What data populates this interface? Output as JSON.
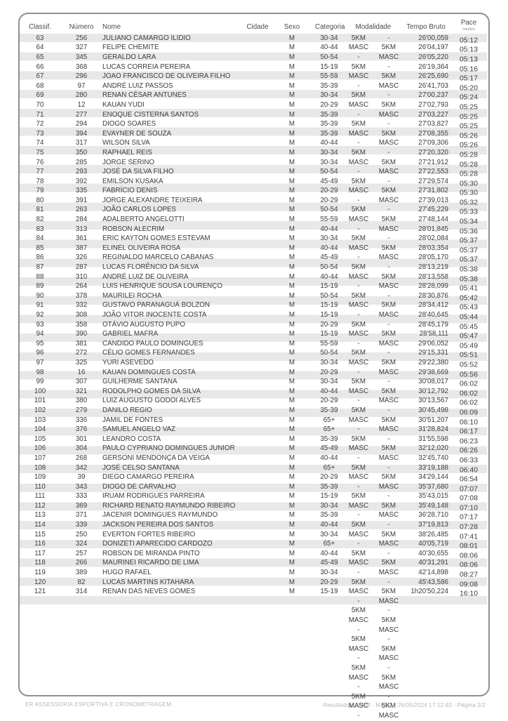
{
  "table": {
    "headers": [
      "Classif.",
      "Número",
      "Nome",
      "Cidade",
      "Sexo",
      "Categoria",
      "Modalidade",
      "Tempo Bruto",
      "Pace"
    ],
    "pace_subheader": "min/km",
    "rows": [
      [
        "63",
        "256",
        "JULIANO CAMARGO ILIDIO",
        "",
        "M",
        "30-34",
        "5KM",
        "-",
        "26'00,059",
        "05:12"
      ],
      [
        "64",
        "327",
        "FELIPE CHEMITE",
        "",
        "M",
        "40-44",
        "MASC",
        "5KM",
        "26'04,197",
        "05:13"
      ],
      [
        "65",
        "345",
        "GERALDO LARA",
        "",
        "M",
        "50-54",
        "-",
        "MASC",
        "26'05,220",
        "05:13"
      ],
      [
        "66",
        "368",
        "LUCAS CORREIA PEREIRA",
        "",
        "M",
        "15-19",
        "5KM",
        "-",
        "26'19,364",
        "05:16"
      ],
      [
        "67",
        "296",
        "JOAO FRANCISCO DE OLIVEIRA FILHO",
        "",
        "M",
        "55-59",
        "MASC",
        "5KM",
        "26'25,690",
        "05:17"
      ],
      [
        "68",
        "97",
        "ANDRÉ LUIZ PASSOS",
        "",
        "M",
        "35-39",
        "-",
        "MASC",
        "26'41,703",
        "05:20"
      ],
      [
        "69",
        "280",
        "RENAN CÉSAR ANTUNES",
        "",
        "M",
        "30-34",
        "5KM",
        "-",
        "27'00,237",
        "05:24"
      ],
      [
        "70",
        "12",
        "KAUAN YUDI",
        "",
        "M",
        "20-29",
        "MASC",
        "5KM",
        "27'02,793",
        "05:25"
      ],
      [
        "71",
        "277",
        "ENOQUE CISTERNA SANTOS",
        "",
        "M",
        "35-39",
        "-",
        "MASC",
        "27'03,227",
        "05:25"
      ],
      [
        "72",
        "294",
        "DIOGO SOARES",
        "",
        "M",
        "35-39",
        "5KM",
        "-",
        "27'03,827",
        "05:25"
      ],
      [
        "73",
        "394",
        "EVAYNER DE SOUZA",
        "",
        "M",
        "35-39",
        "MASC",
        "5KM",
        "27'08,355",
        "05:26"
      ],
      [
        "74",
        "317",
        "WILSON SILVA",
        "",
        "M",
        "40-44",
        "-",
        "MASC",
        "27'09,306",
        "05:26"
      ],
      [
        "75",
        "350",
        "RAPHAEL REIS",
        "",
        "M",
        "30-34",
        "5KM",
        "-",
        "27'20,320",
        "05:28"
      ],
      [
        "76",
        "285",
        "JORGE SERINO",
        "",
        "M",
        "30-34",
        "MASC",
        "5KM",
        "27'21,912",
        "05:28"
      ],
      [
        "77",
        "293",
        "JOSÉ DA SILVA FILHO",
        "",
        "M",
        "50-54",
        "-",
        "MASC",
        "27'22,553",
        "05:28"
      ],
      [
        "78",
        "392",
        "EMILSON KUSAKA",
        "",
        "M",
        "45-49",
        "5KM",
        "-",
        "27'29,574",
        "05:30"
      ],
      [
        "79",
        "335",
        "FABRÍCIO DENIS",
        "",
        "M",
        "20-29",
        "MASC",
        "5KM",
        "27'31,802",
        "05:30"
      ],
      [
        "80",
        "391",
        "JORGE ALEXANDRE TEIXEIRA",
        "",
        "M",
        "20-29",
        "-",
        "MASC",
        "27'39,013",
        "05:32"
      ],
      [
        "81",
        "263",
        "JOÃO CARLOS LOPES",
        "",
        "M",
        "50-54",
        "5KM",
        "-",
        "27'45,229",
        "05:33"
      ],
      [
        "82",
        "284",
        "ADALBERTO ANGELOTTI",
        "",
        "M",
        "55-59",
        "MASC",
        "5KM",
        "27'48,144",
        "05:34"
      ],
      [
        "83",
        "313",
        "ROBSON ALECRIM",
        "",
        "M",
        "40-44",
        "-",
        "MASC",
        "28'01,845",
        "05:36"
      ],
      [
        "84",
        "361",
        "ERIC KAYTON GOMES ESTEVAM",
        "",
        "M",
        "30-34",
        "5KM",
        "-",
        "28'02,084",
        "05:37"
      ],
      [
        "85",
        "387",
        "ELINEL OLIVEIRA ROSA",
        "",
        "M",
        "40-44",
        "MASC",
        "5KM",
        "28'03,354",
        "05:37"
      ],
      [
        "86",
        "326",
        "REGINALDO MARCELO CABANAS",
        "",
        "M",
        "45-49",
        "-",
        "MASC",
        "28'05,170",
        "05:37"
      ],
      [
        "87",
        "287",
        "LUCAS FLORÊNCIO DA SILVA",
        "",
        "M",
        "50-54",
        "5KM",
        "-",
        "28'13,219",
        "05:38"
      ],
      [
        "88",
        "310",
        "ANDRÉ LUIZ DE OLIVEIRA",
        "",
        "M",
        "40-44",
        "MASC",
        "5KM",
        "28'13,558",
        "05:38"
      ],
      [
        "89",
        "264",
        "LUIS HENRIQUE SOUSA LOURENÇO",
        "",
        "M",
        "15-19",
        "-",
        "MASC",
        "28'28,099",
        "05:41"
      ],
      [
        "90",
        "378",
        "MAURILEI ROCHA",
        "",
        "M",
        "50-54",
        "5KM",
        "-",
        "28'30,876",
        "05:42"
      ],
      [
        "91",
        "332",
        "GUSTAVO PARANAGUÁ BOLZON",
        "",
        "M",
        "15-19",
        "MASC",
        "5KM",
        "28'34,412",
        "05:43"
      ],
      [
        "92",
        "308",
        "JOÃO VITOR INOCENTE COSTA",
        "",
        "M",
        "15-19",
        "-",
        "MASC",
        "28'40,645",
        "05:44"
      ],
      [
        "93",
        "358",
        "OTÁVIO AUGUSTO PUPO",
        "",
        "M",
        "20-29",
        "5KM",
        "-",
        "28'45,179",
        "05:45"
      ],
      [
        "94",
        "390",
        "GABRIEL MAFRA",
        "",
        "M",
        "15-19",
        "MASC",
        "5KM",
        "28'58,111",
        "05:47"
      ],
      [
        "95",
        "381",
        "CANDIDO PAULO DOMINGUES",
        "",
        "M",
        "55-59",
        "-",
        "MASC",
        "29'06,052",
        "05:49"
      ],
      [
        "96",
        "272",
        "CÉLIO GOMES FERNANDES",
        "",
        "M",
        "50-54",
        "5KM",
        "-",
        "29'15,331",
        "05:51"
      ],
      [
        "97",
        "325",
        "YURI ASEVEDO",
        "",
        "M",
        "30-34",
        "MASC",
        "5KM",
        "29'22,380",
        "05:52"
      ],
      [
        "98",
        "16",
        "KAUAN DOMINGUES COSTA",
        "",
        "M",
        "20-29",
        "-",
        "MASC",
        "29'38,669",
        "05:56"
      ],
      [
        "99",
        "307",
        "GUILHERME SANTANA",
        "",
        "M",
        "30-34",
        "5KM",
        "-",
        "30'08,017",
        "06:02"
      ],
      [
        "100",
        "321",
        "RODOLPHO GOMES DA SILVA",
        "",
        "M",
        "40-44",
        "MASC",
        "5KM",
        "30'12,792",
        "06:02"
      ],
      [
        "101",
        "380",
        "LUIZ AUGUSTO GODOI ALVES",
        "",
        "M",
        "20-29",
        "-",
        "MASC",
        "30'13,567",
        "06:02"
      ],
      [
        "102",
        "279",
        "DANILO REGIO",
        "",
        "M",
        "35-39",
        "5KM",
        "-",
        "30'45,498",
        "06:09"
      ],
      [
        "103",
        "336",
        "JAMIL DE FONTES",
        "",
        "M",
        "65+",
        "MASC",
        "5KM",
        "30'51,207",
        "06:10"
      ],
      [
        "104",
        "376",
        "SAMUEL ANGELO VAZ",
        "",
        "M",
        "65+",
        "-",
        "MASC",
        "31'28,824",
        "06:17"
      ],
      [
        "105",
        "301",
        "LEANDRO COSTA",
        "",
        "M",
        "35-39",
        "5KM",
        "-",
        "31'55,598",
        "06:23"
      ],
      [
        "106",
        "304",
        "PAULO CYPRIANO DOMINGUES JUNIOR",
        "",
        "M",
        "45-49",
        "MASC",
        "5KM",
        "32'12,020",
        "06:26"
      ],
      [
        "107",
        "268",
        "GERSONI MENDONÇA DA VEIGA",
        "",
        "M",
        "40-44",
        "-",
        "MASC",
        "32'45,740",
        "06:33"
      ],
      [
        "108",
        "342",
        "JOSÉ CELSO SANTANA",
        "",
        "M",
        "65+",
        "5KM",
        "-",
        "33'19,188",
        "06:40"
      ],
      [
        "109",
        "39",
        "DIEGO CAMARGO PEREIRA",
        "",
        "M",
        "20-29",
        "MASC",
        "5KM",
        "34'29,144",
        "06:54"
      ],
      [
        "110",
        "343",
        "DIOGO DE CARVALHO",
        "",
        "M",
        "35-39",
        "-",
        "MASC",
        "35'37,680",
        "07:07"
      ],
      [
        "111",
        "333",
        "IRUAM RODRIGUES PARREIRA",
        "",
        "M",
        "15-19",
        "5KM",
        "-",
        "35'43,015",
        "07:08"
      ],
      [
        "112",
        "369",
        "RICHARD RENATO RAYMUNDO RIBEIRO",
        "",
        "M",
        "30-34",
        "MASC",
        "5KM",
        "35'49,148",
        "07:10"
      ],
      [
        "113",
        "371",
        "JACENIR DOMINGUES RAYMUNDO",
        "",
        "M",
        "35-39",
        "-",
        "MASC",
        "36'28,710",
        "07:17"
      ],
      [
        "114",
        "339",
        "JACKSON PEREIRA DOS SANTOS",
        "",
        "M",
        "40-44",
        "5KM",
        "-",
        "37'19,813",
        "07:28"
      ],
      [
        "115",
        "250",
        "EVERTON FORTES RIBEIRO",
        "",
        "M",
        "30-34",
        "MASC",
        "5KM",
        "38'26,485",
        "07:41"
      ],
      [
        "116",
        "324",
        "DONIZETI APARECIDO CARDOZO",
        "",
        "M",
        "65+",
        "-",
        "MASC",
        "40'05,719",
        "08:01"
      ],
      [
        "117",
        "257",
        "ROBSON DE MIRANDA PINTO",
        "",
        "M",
        "40-44",
        "5KM",
        "-",
        "40'30,655",
        "08:06"
      ],
      [
        "118",
        "266",
        "MAURINEI RICARDO DE LIMA",
        "",
        "M",
        "45-49",
        "MASC",
        "5KM",
        "40'31,291",
        "08:06"
      ],
      [
        "119",
        "389",
        "HUGO RAFAEL",
        "",
        "M",
        "30-34",
        "-",
        "MASC",
        "42'14,898",
        "08:27"
      ],
      [
        "120",
        "82",
        "LUCAS MARTINS KITAHARA",
        "",
        "M",
        "20-29",
        "5KM",
        "-",
        "45'43,586",
        "09:08"
      ],
      [
        "121",
        "314",
        "RENAN DAS NEVES GOMES",
        "",
        "M",
        "15-19",
        "MASC",
        "5KM",
        "1h20'50,224",
        "16:10"
      ]
    ],
    "overflow_modalidade_rows": [
      [
        "-",
        "MASC"
      ],
      [
        "5KM",
        "-"
      ],
      [
        "MASC",
        "5KM"
      ],
      [
        "-",
        "MASC"
      ],
      [
        "5KM",
        "-"
      ],
      [
        "MASC",
        "5KM"
      ],
      [
        "-",
        "MASC"
      ],
      [
        "5KM",
        "-"
      ],
      [
        "MASC",
        "5KM"
      ],
      [
        "-",
        "MASC"
      ],
      [
        "5KM",
        "-"
      ],
      [
        "MASC",
        "5KM"
      ],
      [
        "-",
        "MASC"
      ]
    ]
  },
  "footer": {
    "left": "ER ASSESSORIA ESPORTIVA E CRONOMETRAGEM.",
    "right": "Resultados - 5KM - MASC - 26/05/2024 17:12:40 - Página 2/2"
  },
  "colors": {
    "stripe": "#e8e8e8",
    "row_text": "#3c3c3c",
    "header_text": "#4a4a4a",
    "card_border": "#8f8f8f",
    "footer_text": "#b5b5b5",
    "background": "#ffffff"
  }
}
